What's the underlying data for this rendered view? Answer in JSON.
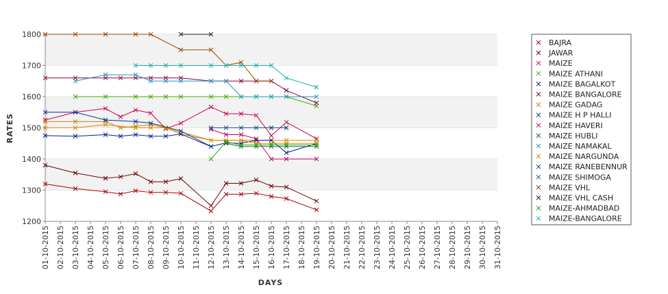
{
  "chart_data": {
    "type": "line",
    "xlabel": "DAYS",
    "ylabel": "RATES",
    "ylim": [
      1200,
      1800
    ],
    "yticks": [
      1200,
      1300,
      1400,
      1500,
      1600,
      1700,
      1800
    ],
    "grid": "horizontal bands",
    "legend_position": "right",
    "categories": [
      "01-10-2015",
      "02-10-2015",
      "03-10-2015",
      "04-10-2015",
      "05-10-2015",
      "06-10-2015",
      "07-10-2015",
      "08-10-2015",
      "09-10-2015",
      "10-10-2015",
      "11-10-2015",
      "12-10-2015",
      "13-10-2015",
      "14-10-2015",
      "15-10-2015",
      "16-10-2015",
      "17-10-2015",
      "18-10-2015",
      "19-10-2015",
      "20-10-2015",
      "21-10-2015",
      "22-10-2015",
      "23-10-2015",
      "24-10-2015",
      "25-10-2015",
      "26-10-2015",
      "27-10-2015",
      "28-10-2015",
      "29-10-2015",
      "30-10-2015",
      "31-10-2015"
    ],
    "series": [
      {
        "name": "BAJRA",
        "color": "#aa0000",
        "points": [
          [
            0,
            1320
          ],
          [
            2,
            1305
          ],
          [
            4,
            1295
          ],
          [
            5,
            1288
          ],
          [
            6,
            1298
          ],
          [
            7,
            1293
          ],
          [
            8,
            1293
          ],
          [
            9,
            1290
          ],
          [
            11,
            1233
          ],
          [
            12,
            1287
          ],
          [
            13,
            1287
          ],
          [
            14,
            1290
          ],
          [
            15,
            1280
          ],
          [
            16,
            1273
          ],
          [
            18,
            1237
          ]
        ]
      },
      {
        "name": "JAWAR",
        "color": "#660000",
        "points": [
          [
            0,
            1380
          ],
          [
            2,
            1355
          ],
          [
            4,
            1338
          ],
          [
            5,
            1343
          ],
          [
            6,
            1353
          ],
          [
            7,
            1327
          ],
          [
            8,
            1327
          ],
          [
            9,
            1337
          ],
          [
            11,
            1250
          ],
          [
            12,
            1322
          ],
          [
            13,
            1322
          ],
          [
            14,
            1333
          ],
          [
            15,
            1313
          ],
          [
            16,
            1310
          ],
          [
            18,
            1265
          ]
        ]
      },
      {
        "name": "MAIZE",
        "color": "#cc0044",
        "points": [
          [
            0,
            1525
          ],
          [
            2,
            1550
          ],
          [
            4,
            1562
          ],
          [
            5,
            1535
          ],
          [
            6,
            1557
          ],
          [
            7,
            1547
          ],
          [
            8,
            1497
          ],
          [
            9,
            1515
          ],
          [
            11,
            1567
          ],
          [
            12,
            1545
          ],
          [
            13,
            1545
          ],
          [
            14,
            1540
          ],
          [
            15,
            1475
          ],
          [
            16,
            1518
          ],
          [
            18,
            1465
          ]
        ]
      },
      {
        "name": "MAIZE ATHANI",
        "color": "#44aa00",
        "points": [
          [
            2,
            1600
          ],
          [
            4,
            1600
          ],
          [
            6,
            1600
          ],
          [
            7,
            1600
          ],
          [
            8,
            1600
          ],
          [
            9,
            1600
          ],
          [
            11,
            1600
          ],
          [
            12,
            1600
          ],
          [
            13,
            1600
          ],
          [
            14,
            1600
          ],
          [
            15,
            1600
          ],
          [
            16,
            1600
          ],
          [
            18,
            1570
          ]
        ]
      },
      {
        "name": "MAIZE BAGALKOT",
        "color": "#1a1aa0",
        "points": [
          [
            15,
            1500
          ],
          [
            16,
            1500
          ]
        ]
      },
      {
        "name": "MAIZE BANGALORE",
        "color": "#880044",
        "points": [
          [
            0,
            1660
          ],
          [
            2,
            1660
          ],
          [
            4,
            1660
          ],
          [
            5,
            1660
          ],
          [
            6,
            1660
          ],
          [
            7,
            1660
          ],
          [
            8,
            1660
          ],
          [
            9,
            1660
          ],
          [
            11,
            1650
          ],
          [
            12,
            1650
          ],
          [
            13,
            1650
          ],
          [
            14,
            1650
          ],
          [
            15,
            1650
          ],
          [
            16,
            1620
          ],
          [
            18,
            1580
          ]
        ]
      },
      {
        "name": "MAIZE GADAG",
        "color": "#cc8800",
        "points": [
          [
            0,
            1520
          ],
          [
            2,
            1520
          ],
          [
            4,
            1520
          ],
          [
            5,
            1500
          ],
          [
            6,
            1505
          ],
          [
            7,
            1510
          ],
          [
            8,
            1500
          ],
          [
            9,
            1480
          ],
          [
            11,
            1460
          ],
          [
            12,
            1460
          ],
          [
            13,
            1460
          ],
          [
            14,
            1460
          ],
          [
            15,
            1460
          ],
          [
            16,
            1460
          ],
          [
            18,
            1460
          ]
        ]
      },
      {
        "name": "MAIZE H P HALLI",
        "color": "#002288",
        "points": [
          [
            0,
            1475
          ],
          [
            2,
            1473
          ],
          [
            4,
            1478
          ],
          [
            5,
            1473
          ],
          [
            6,
            1478
          ],
          [
            7,
            1473
          ],
          [
            8,
            1473
          ],
          [
            9,
            1480
          ],
          [
            11,
            1440
          ],
          [
            12,
            1452
          ],
          [
            13,
            1450
          ],
          [
            14,
            1460
          ],
          [
            15,
            1460
          ],
          [
            16,
            1420
          ],
          [
            18,
            1450
          ]
        ]
      },
      {
        "name": "MAIZE HAVERI",
        "color": "#bb0066",
        "points": [
          [
            11,
            1495
          ],
          [
            12,
            1478
          ],
          [
            13,
            1478
          ],
          [
            14,
            1465
          ],
          [
            15,
            1400
          ],
          [
            16,
            1400
          ],
          [
            18,
            1400
          ]
        ]
      },
      {
        "name": "MAIZE HUBLI",
        "color": "#226633",
        "points": [
          [
            12,
            1450
          ],
          [
            13,
            1440
          ],
          [
            14,
            1440
          ],
          [
            15,
            1440
          ],
          [
            16,
            1440
          ],
          [
            18,
            1440
          ]
        ]
      },
      {
        "name": "MAIZE NAMAKAL",
        "color": "#2299bb",
        "points": [
          [
            2,
            1650
          ],
          [
            4,
            1670
          ],
          [
            6,
            1670
          ],
          [
            7,
            1650
          ],
          [
            8,
            1650
          ],
          [
            9,
            1650
          ],
          [
            11,
            1650
          ],
          [
            12,
            1650
          ],
          [
            13,
            1600
          ],
          [
            14,
            1600
          ],
          [
            15,
            1600
          ],
          [
            16,
            1600
          ],
          [
            18,
            1600
          ]
        ]
      },
      {
        "name": "MAIZE NARGUNDA",
        "color": "#dd8800",
        "points": [
          [
            0,
            1500
          ],
          [
            2,
            1500
          ],
          [
            4,
            1510
          ],
          [
            6,
            1500
          ],
          [
            7,
            1500
          ],
          [
            8,
            1500
          ],
          [
            11,
            1460
          ],
          [
            12,
            1460
          ],
          [
            13,
            1460
          ],
          [
            14,
            1450
          ],
          [
            15,
            1450
          ],
          [
            16,
            1450
          ],
          [
            18,
            1450
          ]
        ]
      },
      {
        "name": "MAIZE RANEBENNUR",
        "color": "#003399",
        "points": [
          [
            0,
            1550
          ],
          [
            2,
            1550
          ],
          [
            4,
            1525
          ],
          [
            6,
            1520
          ],
          [
            7,
            1515
          ],
          [
            9,
            1490
          ],
          [
            11,
            1440
          ]
        ]
      },
      {
        "name": "MAIZE SHIMOGA",
        "color": "#115577",
        "points": [
          [
            11,
            1500
          ],
          [
            12,
            1500
          ],
          [
            13,
            1500
          ],
          [
            14,
            1500
          ],
          [
            15,
            1500
          ],
          [
            16,
            1500
          ]
        ]
      },
      {
        "name": "MAIZE VHL",
        "color": "#994400",
        "points": [
          [
            0,
            1800
          ],
          [
            2,
            1800
          ],
          [
            4,
            1800
          ],
          [
            6,
            1800
          ],
          [
            7,
            1800
          ],
          [
            9,
            1750
          ],
          [
            11,
            1750
          ],
          [
            12,
            1700
          ],
          [
            13,
            1710
          ],
          [
            14,
            1650
          ],
          [
            15,
            1650
          ]
        ]
      },
      {
        "name": "MAIZE VHL CASH",
        "color": "#222222",
        "points": [
          [
            9,
            1800
          ],
          [
            11,
            1800
          ]
        ]
      },
      {
        "name": "MAIZE-AHMADBAD",
        "color": "#22aa22",
        "points": [
          [
            11,
            1400
          ],
          [
            12,
            1455
          ],
          [
            13,
            1445
          ],
          [
            14,
            1445
          ],
          [
            15,
            1445
          ],
          [
            16,
            1445
          ],
          [
            18,
            1445
          ]
        ]
      },
      {
        "name": "MAIZE-BANGALORE",
        "color": "#22aaaa",
        "points": [
          [
            6,
            1700
          ],
          [
            7,
            1700
          ],
          [
            8,
            1700
          ],
          [
            9,
            1700
          ],
          [
            11,
            1700
          ],
          [
            12,
            1700
          ],
          [
            13,
            1700
          ],
          [
            14,
            1700
          ],
          [
            15,
            1700
          ],
          [
            16,
            1660
          ],
          [
            18,
            1630
          ]
        ]
      }
    ]
  }
}
